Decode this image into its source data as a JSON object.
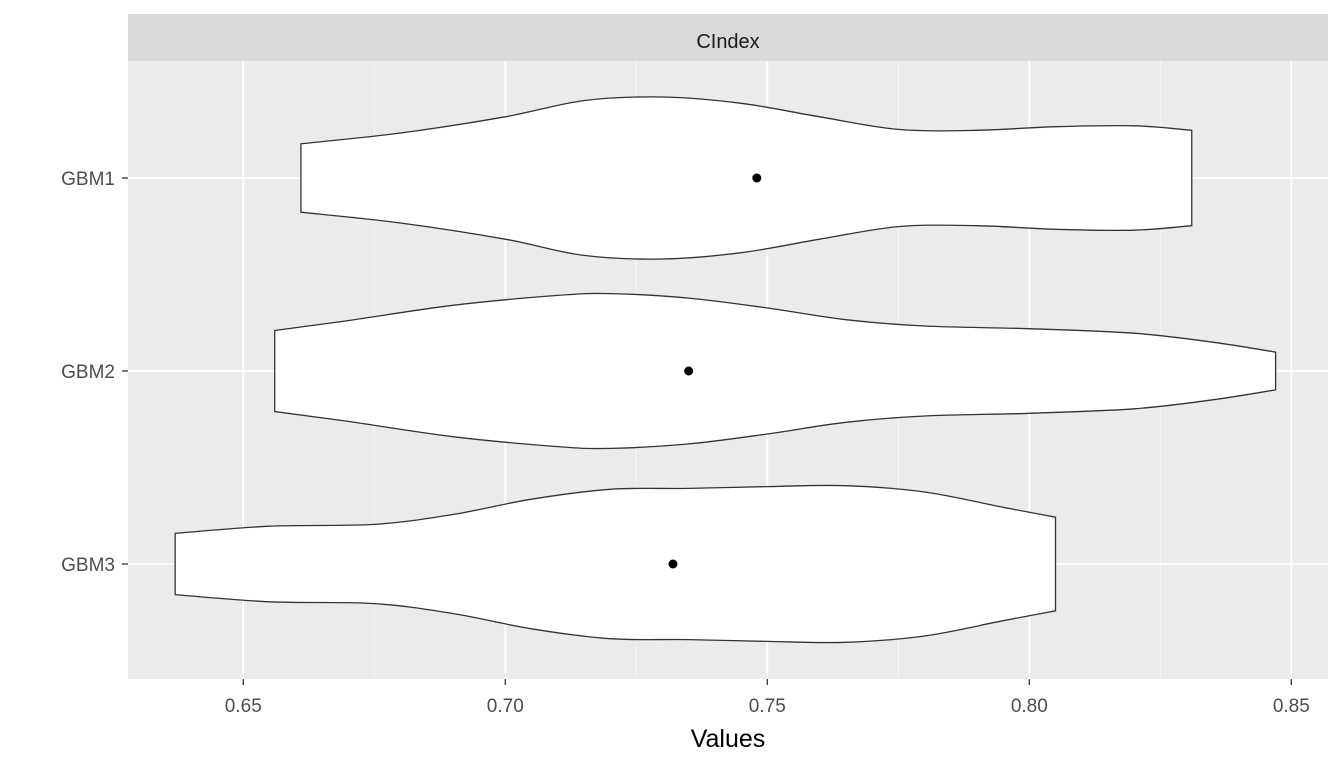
{
  "chart_data": {
    "type": "violin",
    "orientation": "horizontal",
    "facet_label": "CIndex",
    "xlabel": "Values",
    "ylabel": "",
    "xlim": [
      0.628,
      0.857
    ],
    "x_ticks": [
      0.65,
      0.7,
      0.75,
      0.8,
      0.85
    ],
    "x_tick_labels": [
      "0.65",
      "0.70",
      "0.75",
      "0.80",
      "0.85"
    ],
    "categories": [
      "GBM1",
      "GBM2",
      "GBM3"
    ],
    "grid": true,
    "colors": {
      "panel": "#ebebeb",
      "strip": "#d9d9d9",
      "grid": "#ffffff",
      "violin_fill": "#ffffff",
      "violin_stroke": "#333333",
      "point": "#000000"
    },
    "series": [
      {
        "name": "GBM1",
        "mean": 0.748,
        "min": 0.661,
        "max": 0.831,
        "density": [
          [
            0.661,
            0.38
          ],
          [
            0.68,
            0.5
          ],
          [
            0.7,
            0.68
          ],
          [
            0.715,
            0.86
          ],
          [
            0.73,
            0.9
          ],
          [
            0.745,
            0.83
          ],
          [
            0.76,
            0.68
          ],
          [
            0.775,
            0.54
          ],
          [
            0.79,
            0.53
          ],
          [
            0.805,
            0.57
          ],
          [
            0.82,
            0.58
          ],
          [
            0.831,
            0.53
          ]
        ]
      },
      {
        "name": "GBM2",
        "mean": 0.735,
        "min": 0.656,
        "max": 0.847,
        "density": [
          [
            0.656,
            0.45
          ],
          [
            0.67,
            0.56
          ],
          [
            0.69,
            0.73
          ],
          [
            0.71,
            0.84
          ],
          [
            0.72,
            0.86
          ],
          [
            0.735,
            0.81
          ],
          [
            0.75,
            0.7
          ],
          [
            0.765,
            0.57
          ],
          [
            0.78,
            0.5
          ],
          [
            0.8,
            0.47
          ],
          [
            0.82,
            0.42
          ],
          [
            0.835,
            0.32
          ],
          [
            0.847,
            0.21
          ]
        ]
      },
      {
        "name": "GBM3",
        "mean": 0.732,
        "min": 0.637,
        "max": 0.805,
        "density": [
          [
            0.637,
            0.34
          ],
          [
            0.655,
            0.42
          ],
          [
            0.675,
            0.44
          ],
          [
            0.69,
            0.55
          ],
          [
            0.705,
            0.72
          ],
          [
            0.72,
            0.83
          ],
          [
            0.735,
            0.84
          ],
          [
            0.75,
            0.86
          ],
          [
            0.765,
            0.87
          ],
          [
            0.78,
            0.8
          ],
          [
            0.795,
            0.63
          ],
          [
            0.805,
            0.52
          ]
        ]
      }
    ]
  }
}
